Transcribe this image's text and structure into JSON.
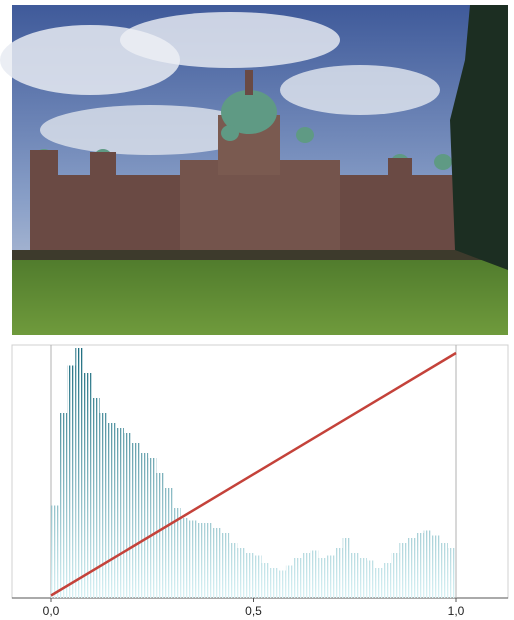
{
  "chart_data": {
    "type": "histogram",
    "bins": [
      0,
      0.02,
      0.04,
      0.06,
      0.08,
      0.1,
      0.12,
      0.14,
      0.16,
      0.18,
      0.2,
      0.22,
      0.24,
      0.26,
      0.28,
      0.3,
      0.32,
      0.34,
      0.36,
      0.38,
      0.4,
      0.42,
      0.44,
      0.46,
      0.48,
      0.5,
      0.52,
      0.54,
      0.56,
      0.58,
      0.6,
      0.62,
      0.64,
      0.66,
      0.68,
      0.7,
      0.72,
      0.74,
      0.76,
      0.78,
      0.8,
      0.82,
      0.84,
      0.86,
      0.88,
      0.9,
      0.92,
      0.94,
      0.96,
      0.98,
      1
    ],
    "values": [
      37,
      74,
      93,
      100,
      90,
      80,
      74,
      70,
      68,
      66,
      62,
      58,
      56,
      50,
      44,
      36,
      32,
      31,
      30,
      30,
      28,
      26,
      22,
      20,
      18,
      17,
      14,
      12,
      11,
      13,
      16,
      18,
      19,
      16,
      17,
      20,
      24,
      18,
      16,
      15,
      12,
      14,
      18,
      22,
      24,
      26,
      27,
      25,
      22,
      20
    ],
    "color": "#1f6e80",
    "line": {
      "x": [
        0,
        1
      ],
      "values": [
        1,
        98
      ],
      "color": "#c4423a"
    },
    "xlim": [
      0,
      1
    ],
    "ylim": [
      0,
      100
    ],
    "xticks": [
      {
        "value": 0,
        "label": "0,0"
      },
      {
        "value": 0.5,
        "label": "0,5"
      },
      {
        "value": 1,
        "label": "1,0"
      }
    ]
  }
}
